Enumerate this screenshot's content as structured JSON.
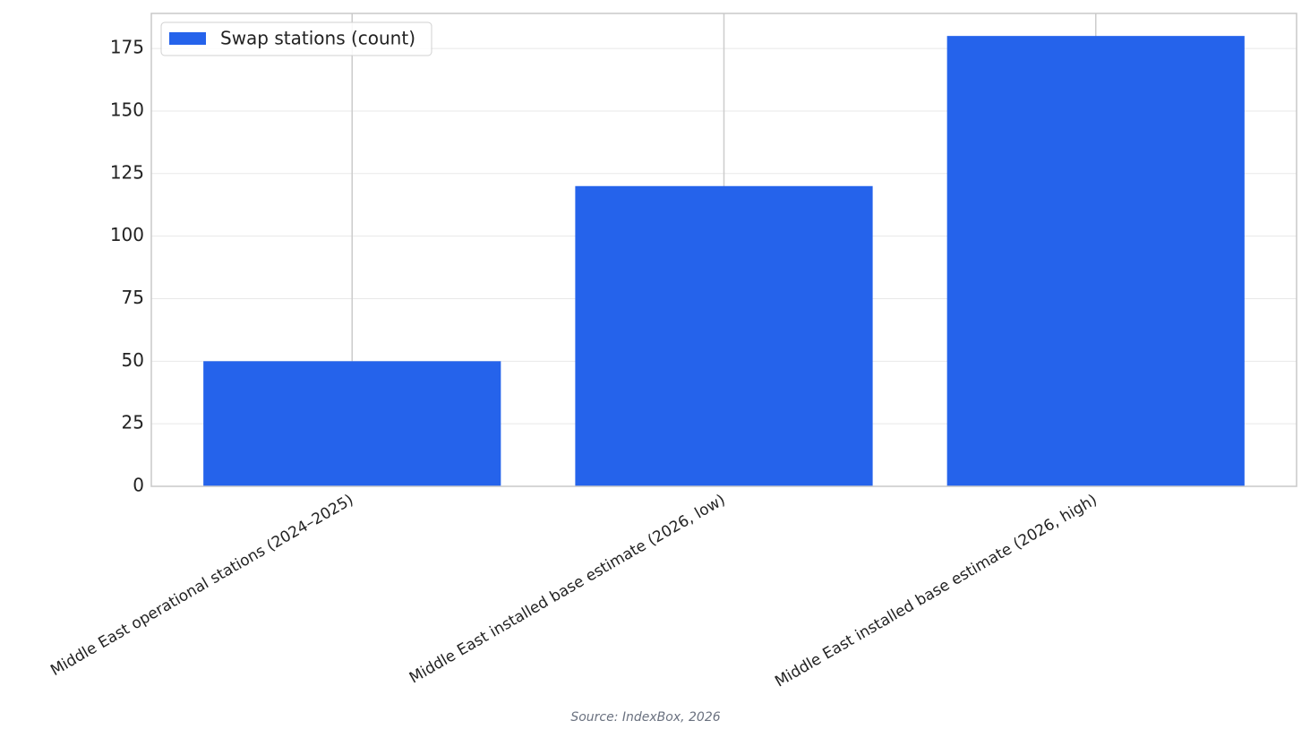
{
  "chart_data": {
    "type": "bar",
    "categories": [
      "Middle East operational stations (2024–2025)",
      "Middle East installed base estimate (2026, low)",
      "Middle East installed base estimate (2026, high)"
    ],
    "series": [
      {
        "name": "Swap stations (count)",
        "color": "#2563eb",
        "values": [
          50,
          120,
          180
        ]
      }
    ],
    "ylim": [
      0,
      189
    ],
    "yticks": [
      0,
      25,
      50,
      75,
      100,
      125,
      150,
      175
    ],
    "grid": true,
    "legend": "upper left",
    "source": "Source: IndexBox, 2026"
  }
}
